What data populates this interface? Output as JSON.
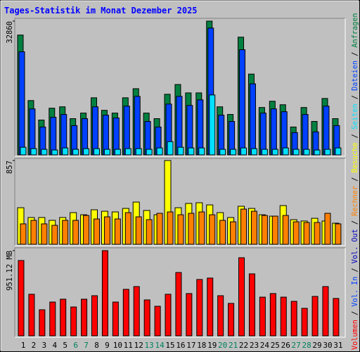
{
  "title": "Tages-Statistik im Monat Dezember 2025",
  "legend_separator": "/",
  "chart_data": [
    {
      "type": "bar",
      "ylim": [
        0,
        32860
      ],
      "yticks": [
        32860
      ],
      "series": [
        {
          "name": "Anfragen",
          "color": "#008040",
          "values": [
            29440,
            13350,
            8560,
            11470,
            11810,
            8900,
            10270,
            14030,
            10950,
            10270,
            14030,
            16260,
            10270,
            8900,
            14890,
            17290,
            15230,
            15230,
            32860,
            11810,
            9930,
            28920,
            19850,
            11640,
            13180,
            12320,
            6850,
            11640,
            8220,
            13860,
            8900
          ]
        },
        {
          "name": "Dateien",
          "color": "#0040FF",
          "values": [
            25330,
            11300,
            6850,
            9240,
            9930,
            7190,
            8900,
            11810,
            9760,
            9070,
            11980,
            14380,
            8220,
            6850,
            12490,
            14380,
            12150,
            13520,
            31150,
            9760,
            8220,
            25840,
            17460,
            10270,
            11300,
            10610,
            5480,
            9930,
            5650,
            11980,
            7190
          ]
        },
        {
          "name": "Seiten",
          "color": "#00E0FF",
          "values": [
            1880,
            1540,
            1370,
            1200,
            1710,
            1370,
            1540,
            1540,
            1370,
            1370,
            1540,
            1540,
            1370,
            1710,
            3250,
            1880,
            1710,
            1710,
            14720,
            1370,
            1370,
            1710,
            1540,
            1370,
            1370,
            1710,
            1370,
            1370,
            1200,
            1370,
            1710
          ]
        }
      ]
    },
    {
      "type": "bar",
      "ylim": [
        0,
        857
      ],
      "yticks": [
        857
      ],
      "series": [
        {
          "name": "Besuche",
          "color": "#FFFF00",
          "values": [
            374,
            274,
            274,
            245,
            274,
            324,
            302,
            353,
            338,
            331,
            367,
            432,
            346,
            302,
            857,
            374,
            418,
            425,
            403,
            324,
            274,
            389,
            367,
            302,
            288,
            396,
            252,
            238,
            266,
            238,
            216
          ]
        },
        {
          "name": "Rechner",
          "color": "#FF8000",
          "values": [
            209,
            245,
            209,
            194,
            245,
            245,
            295,
            259,
            281,
            259,
            324,
            281,
            252,
            317,
            331,
            302,
            317,
            331,
            302,
            245,
            230,
            360,
            338,
            295,
            288,
            295,
            230,
            223,
            223,
            317,
            209
          ]
        }
      ]
    },
    {
      "type": "bar",
      "ylim": [
        0,
        951.12
      ],
      "yticks": [
        {
          "value": 951.12,
          "label": "951.12 MB"
        }
      ],
      "categories": [
        "1",
        "2",
        "3",
        "4",
        "5",
        "6",
        "7",
        "8",
        "9",
        "10",
        "11",
        "12",
        "13",
        "14",
        "15",
        "16",
        "17",
        "18",
        "19",
        "20",
        "21",
        "22",
        "23",
        "24",
        "25",
        "26",
        "27",
        "28",
        "29",
        "30",
        "31"
      ],
      "category_colors": [
        "#000000",
        "#000000",
        "#000000",
        "#000000",
        "#000000",
        "#00805C",
        "#00805C",
        "#000000",
        "#000000",
        "#000000",
        "#000000",
        "#000000",
        "#00805C",
        "#00805C",
        "#000000",
        "#000000",
        "#000000",
        "#000000",
        "#000000",
        "#00805C",
        "#00805C",
        "#000000",
        "#000000",
        "#000000",
        "#000000",
        "#000000",
        "#00805C",
        "#00805C",
        "#000000",
        "#000000",
        "#000000"
      ],
      "series": [
        {
          "name": "Volumen",
          "color": "#FF0000",
          "values": [
            841,
            464,
            291,
            377,
            409,
            322,
            409,
            448,
            951.12,
            377,
            519,
            550,
            401,
            330,
            464,
            707,
            472,
            629,
            645,
            448,
            362,
            872,
            692,
            432,
            472,
            432,
            385,
            307,
            440,
            550,
            417
          ]
        },
        {
          "name": "Vol. In",
          "color": "#0040FF"
        },
        {
          "name": "Vol. Out",
          "color": "#0000C0"
        }
      ]
    }
  ]
}
